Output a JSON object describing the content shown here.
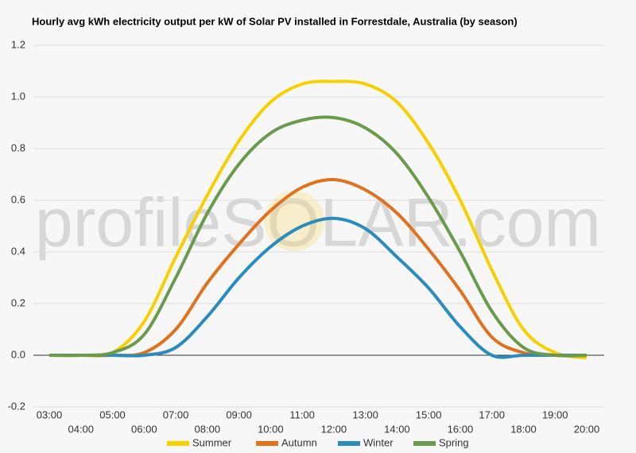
{
  "chart_data": {
    "type": "line",
    "title": "Hourly avg kWh electricity output per kW of Solar PV installed in Forrestdale, Australia (by season)",
    "watermark": "profileSOLAR.com",
    "categories": [
      "03:00",
      "04:00",
      "05:00",
      "06:00",
      "07:00",
      "08:00",
      "09:00",
      "10:00",
      "11:00",
      "12:00",
      "13:00",
      "14:00",
      "15:00",
      "16:00",
      "17:00",
      "18:00",
      "19:00",
      "20:00"
    ],
    "series": [
      {
        "name": "Summer",
        "color": "#f7d000",
        "values": [
          0,
          0,
          0.01,
          0.13,
          0.38,
          0.62,
          0.83,
          0.98,
          1.05,
          1.06,
          1.05,
          0.98,
          0.82,
          0.6,
          0.33,
          0.1,
          0.01,
          -0.01
        ]
      },
      {
        "name": "Autumn",
        "color": "#e2711d",
        "values": [
          0,
          0,
          0,
          0.01,
          0.1,
          0.28,
          0.43,
          0.56,
          0.65,
          0.68,
          0.64,
          0.55,
          0.41,
          0.25,
          0.07,
          0.01,
          0,
          0
        ]
      },
      {
        "name": "Winter",
        "color": "#2a8cbd",
        "values": [
          0,
          0,
          0,
          0,
          0.03,
          0.15,
          0.3,
          0.42,
          0.5,
          0.53,
          0.49,
          0.38,
          0.26,
          0.11,
          0,
          0,
          0,
          0
        ]
      },
      {
        "name": "Spring",
        "color": "#6a9a4c",
        "values": [
          0,
          0,
          0.01,
          0.08,
          0.3,
          0.55,
          0.74,
          0.86,
          0.91,
          0.92,
          0.88,
          0.78,
          0.61,
          0.4,
          0.17,
          0.03,
          0,
          0
        ]
      }
    ],
    "ylim": [
      -0.2,
      1.2
    ],
    "yticks": [
      {
        "value": -0.2,
        "label": "-0.2"
      },
      {
        "value": 0,
        "label": "0.0"
      },
      0.2,
      0.4,
      0.6,
      0.8,
      {
        "value": 1,
        "label": "1.0"
      },
      1.2
    ],
    "grid": true
  }
}
